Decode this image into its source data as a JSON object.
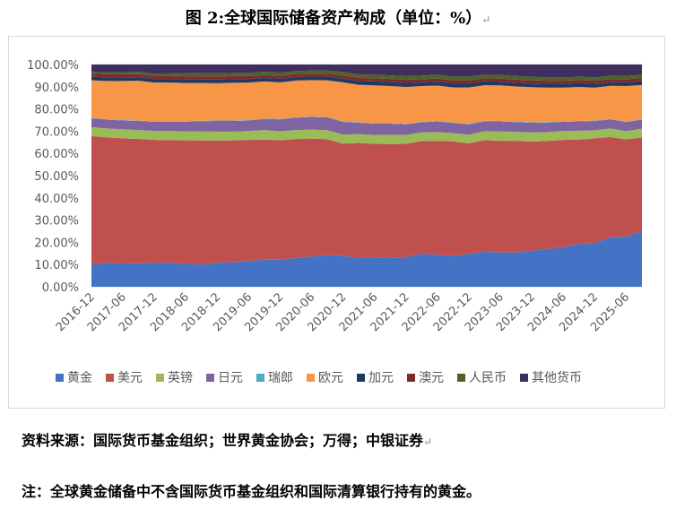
{
  "page": {
    "title": "图 2:全球国际储备资产构成（单位：%）",
    "title_marker": "↵",
    "source": "资料来源：国际货币基金组织；世界黄金协会；万得；中银证券",
    "source_marker": "↵",
    "note": "注：全球黄金储备中不含国际货币基金组织和国际清算银行持有的黄金。"
  },
  "chart_data": {
    "type": "area",
    "stacked": true,
    "y_tick_labels": [
      "0.00%",
      "10.00%",
      "20.00%",
      "30.00%",
      "40.00%",
      "50.00%",
      "60.00%",
      "70.00%",
      "80.00%",
      "90.00%",
      "100.00%"
    ],
    "ylim": [
      0,
      100
    ],
    "x_tick_labels": [
      "2016-12",
      "2017-06",
      "2017-12",
      "2018-06",
      "2018-12",
      "2019-06",
      "2019-12",
      "2020-06",
      "2020-12",
      "2021-06",
      "2021-12",
      "2022-06",
      "2022-12",
      "2023-06",
      "2023-12",
      "2024-06",
      "2024-12",
      "2025-06"
    ],
    "x": [
      "2016-12",
      "2017-03",
      "2017-06",
      "2017-09",
      "2017-12",
      "2018-03",
      "2018-06",
      "2018-09",
      "2018-12",
      "2019-03",
      "2019-06",
      "2019-09",
      "2019-12",
      "2020-03",
      "2020-06",
      "2020-09",
      "2020-12",
      "2021-03",
      "2021-06",
      "2021-09",
      "2021-12",
      "2022-03",
      "2022-06",
      "2022-09",
      "2022-12",
      "2023-03",
      "2023-06",
      "2023-09",
      "2023-12",
      "2024-03",
      "2024-06",
      "2024-09",
      "2024-12",
      "2025-03",
      "2025-06",
      "2025-09"
    ],
    "legend_position": "bottom",
    "series": [
      {
        "name": "黄金",
        "color": "#4472C4",
        "values": [
          10.0,
          10.8,
          10.5,
          10.6,
          10.7,
          10.8,
          10.3,
          10.0,
          10.8,
          11.0,
          11.6,
          12.2,
          12.2,
          12.9,
          13.6,
          14.2,
          14.0,
          12.8,
          13.3,
          13.1,
          13.3,
          14.8,
          14.3,
          13.9,
          14.8,
          15.8,
          15.4,
          15.4,
          16.2,
          17.0,
          17.8,
          19.3,
          19.6,
          22.3,
          22.6,
          25.0
        ]
      },
      {
        "name": "美元",
        "color": "#C0504D",
        "values": [
          57.8,
          56.4,
          56.3,
          55.9,
          55.4,
          55.2,
          55.6,
          55.9,
          55.0,
          54.9,
          54.5,
          54.1,
          53.7,
          53.6,
          53.1,
          52.2,
          50.4,
          51.9,
          51.0,
          51.1,
          51.0,
          50.7,
          51.3,
          51.5,
          49.7,
          50.2,
          50.3,
          50.3,
          49.1,
          48.6,
          48.3,
          46.9,
          47.2,
          45.1,
          43.7,
          42.2
        ]
      },
      {
        "name": "英镑",
        "color": "#9BBB59",
        "values": [
          4.0,
          4.0,
          4.0,
          4.0,
          4.0,
          4.1,
          4.0,
          4.0,
          4.0,
          3.9,
          4.0,
          4.2,
          4.1,
          4.0,
          4.0,
          4.0,
          4.1,
          4.0,
          4.0,
          4.2,
          4.0,
          4.0,
          4.0,
          3.7,
          3.9,
          4.0,
          4.2,
          4.0,
          4.1,
          4.0,
          4.0,
          4.0,
          3.6,
          3.8,
          3.7,
          3.9
        ]
      },
      {
        "name": "日元",
        "color": "#8064A2",
        "values": [
          4.0,
          4.0,
          4.0,
          4.1,
          4.1,
          4.2,
          4.4,
          4.6,
          4.8,
          4.8,
          4.7,
          5.0,
          5.3,
          5.6,
          5.7,
          5.8,
          5.7,
          5.1,
          5.1,
          5.0,
          4.8,
          4.5,
          4.8,
          4.6,
          4.7,
          4.5,
          4.5,
          4.4,
          4.4,
          4.3,
          4.1,
          4.2,
          4.2,
          4.1,
          4.1,
          4.1
        ]
      },
      {
        "name": "瑞郎",
        "color": "#4BACC6",
        "values": [
          0.2,
          0.2,
          0.2,
          0.2,
          0.2,
          0.2,
          0.2,
          0.2,
          0.2,
          0.2,
          0.2,
          0.2,
          0.2,
          0.2,
          0.2,
          0.2,
          0.2,
          0.2,
          0.2,
          0.2,
          0.2,
          0.2,
          0.2,
          0.2,
          0.2,
          0.2,
          0.2,
          0.2,
          0.2,
          0.2,
          0.2,
          0.2,
          0.2,
          0.2,
          0.2,
          0.2
        ]
      },
      {
        "name": "欧元",
        "color": "#F79646",
        "values": [
          16.9,
          17.2,
          17.6,
          17.9,
          17.5,
          17.4,
          17.2,
          17.0,
          16.8,
          17.0,
          16.9,
          16.7,
          16.5,
          16.5,
          16.4,
          16.5,
          17.6,
          16.9,
          17.0,
          16.7,
          16.6,
          16.1,
          15.9,
          15.8,
          16.4,
          16.0,
          16.0,
          15.8,
          15.8,
          15.5,
          15.2,
          15.3,
          14.8,
          14.9,
          16.0,
          15.4
        ]
      },
      {
        "name": "加元",
        "color": "#1F3864",
        "values": [
          1.6,
          1.6,
          1.6,
          1.6,
          1.6,
          1.6,
          1.6,
          1.6,
          1.6,
          1.6,
          1.6,
          1.6,
          1.6,
          1.6,
          1.6,
          1.6,
          1.7,
          1.7,
          1.8,
          1.8,
          1.8,
          1.7,
          1.8,
          1.8,
          1.8,
          1.7,
          1.7,
          1.7,
          1.7,
          1.7,
          1.7,
          1.7,
          1.7,
          1.6,
          1.7,
          1.7
        ]
      },
      {
        "name": "澳元",
        "color": "#7B2C2A",
        "values": [
          1.4,
          1.4,
          1.4,
          1.4,
          1.4,
          1.4,
          1.4,
          1.4,
          1.4,
          1.4,
          1.3,
          1.3,
          1.3,
          1.3,
          1.3,
          1.3,
          1.4,
          1.4,
          1.4,
          1.4,
          1.4,
          1.4,
          1.4,
          1.4,
          1.4,
          1.4,
          1.4,
          1.4,
          1.4,
          1.4,
          1.4,
          1.4,
          1.4,
          1.4,
          1.4,
          1.4
        ]
      },
      {
        "name": "人民币",
        "color": "#4F6228",
        "values": [
          0.8,
          0.8,
          0.9,
          1.0,
          1.0,
          1.1,
          1.3,
          1.4,
          1.4,
          1.4,
          1.4,
          1.4,
          1.4,
          1.4,
          1.4,
          1.5,
          1.5,
          1.5,
          1.6,
          1.6,
          1.7,
          1.6,
          1.7,
          1.7,
          1.7,
          1.6,
          1.6,
          1.6,
          1.6,
          1.5,
          1.5,
          1.5,
          1.5,
          1.5,
          1.5,
          1.5
        ]
      },
      {
        "name": "其他货币",
        "color": "#3F2F5E",
        "values": [
          3.3,
          3.6,
          3.5,
          3.3,
          4.1,
          4.0,
          4.0,
          3.9,
          4.0,
          3.8,
          3.8,
          3.3,
          3.7,
          2.9,
          2.7,
          2.7,
          3.4,
          4.5,
          4.6,
          4.9,
          5.2,
          5.0,
          4.6,
          5.4,
          5.4,
          4.6,
          4.7,
          5.2,
          5.5,
          5.8,
          5.8,
          5.5,
          5.8,
          5.1,
          5.1,
          4.6
        ]
      }
    ]
  }
}
